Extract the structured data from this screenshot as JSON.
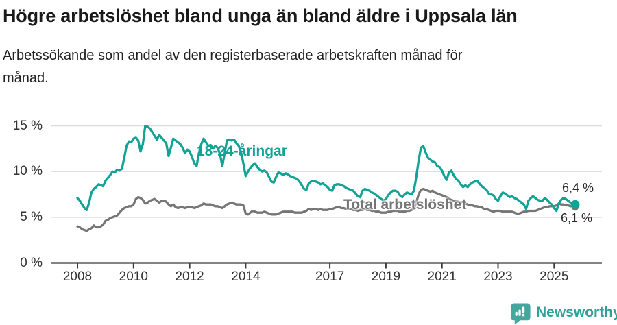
{
  "header": {
    "title": "Högre arbetslöshet bland unga än bland äldre i Uppsala län",
    "subtitle_line1": "Arbetssökande som andel av den registerbaserade arbetskraften månad för",
    "subtitle_line2": "månad."
  },
  "colors": {
    "youth_line": "#12a296",
    "total_line": "#767676",
    "grid": "#dcdcdc",
    "axis": "#3a3a3a",
    "tick_text": "#333333",
    "brand_teal": "#2fa198"
  },
  "footer": {
    "brand": "Newsworthy",
    "logo_icon": "speech-bubble-bar-chart-icon"
  },
  "chart_data": {
    "type": "line",
    "title": "Högre arbetslöshet bland unga än bland äldre i Uppsala län",
    "subtitle": "Arbetssökande som andel av den registerbaserade arbetskraften månad för månad.",
    "x_unit": "month",
    "start_year": 2008,
    "points_per_year": 12,
    "end_point": "2025-10",
    "ylim": [
      0,
      15.5
    ],
    "grid": "horizontal-only",
    "y_axis": {
      "ticks": [
        {
          "value": 15,
          "label": "15 %"
        },
        {
          "value": 10,
          "label": "10 %"
        },
        {
          "value": 5,
          "label": "5 %"
        },
        {
          "value": 0,
          "label": "0 %"
        }
      ]
    },
    "x_axis": {
      "ticks": [
        {
          "value": 2008,
          "label": "2008"
        },
        {
          "value": 2010,
          "label": "2010"
        },
        {
          "value": 2012,
          "label": "2012"
        },
        {
          "value": 2014,
          "label": "2014"
        },
        {
          "value": 2017,
          "label": "2017"
        },
        {
          "value": 2019,
          "label": "2019"
        },
        {
          "value": 2021,
          "label": "2021"
        },
        {
          "value": 2023,
          "label": "2023"
        },
        {
          "value": 2025,
          "label": "2025"
        }
      ]
    },
    "series": [
      {
        "name": "18-24-åringar",
        "color": "#12a296",
        "end_label": "6,4 %",
        "end_value": 6.4,
        "values": [
          7.1,
          6.8,
          6.4,
          6.0,
          5.8,
          6.6,
          7.7,
          8.1,
          8.3,
          8.6,
          8.5,
          8.4,
          9.0,
          9.3,
          9.6,
          10.0,
          9.9,
          10.2,
          10.1,
          10.3,
          11.5,
          12.8,
          13.3,
          13.2,
          13.6,
          13.7,
          13.4,
          12.2,
          13.0,
          15.0,
          14.9,
          14.7,
          14.3,
          13.9,
          13.5,
          14.0,
          13.7,
          13.4,
          13.1,
          11.7,
          12.6,
          13.6,
          13.4,
          13.2,
          13.0,
          12.6,
          12.0,
          12.4,
          12.2,
          11.6,
          10.9,
          10.6,
          12.0,
          13.0,
          13.6,
          13.2,
          12.8,
          12.9,
          12.5,
          12.8,
          12.6,
          11.9,
          10.6,
          12.0,
          13.4,
          13.5,
          13.4,
          13.5,
          13.1,
          12.8,
          12.1,
          10.9,
          9.5,
          10.0,
          10.4,
          10.7,
          10.9,
          10.5,
          10.2,
          10.0,
          10.1,
          9.9,
          9.4,
          8.9,
          8.8,
          9.4,
          9.9,
          9.8,
          9.6,
          9.8,
          9.7,
          9.5,
          9.4,
          9.3,
          9.2,
          8.9,
          8.5,
          8.1,
          8.0,
          8.7,
          8.9,
          9.0,
          8.9,
          8.8,
          8.6,
          8.7,
          8.5,
          8.3,
          8.0,
          7.9,
          8.5,
          8.6,
          8.6,
          8.5,
          8.4,
          8.2,
          8.1,
          8.0,
          7.9,
          7.6,
          7.3,
          7.2,
          7.9,
          8.1,
          8.0,
          7.9,
          7.7,
          7.6,
          7.4,
          7.2,
          7.0,
          6.8,
          7.0,
          7.4,
          7.7,
          7.9,
          7.9,
          7.8,
          7.4,
          7.2,
          7.5,
          7.7,
          7.6,
          7.5,
          7.9,
          9.4,
          11.2,
          12.6,
          12.8,
          12.1,
          11.5,
          11.3,
          11.1,
          11.0,
          10.6,
          10.5,
          10.1,
          9.5,
          9.1,
          9.9,
          10.1,
          9.6,
          9.2,
          9.0,
          8.6,
          8.3,
          8.5,
          8.3,
          8.6,
          8.8,
          8.9,
          9.0,
          8.7,
          8.4,
          8.2,
          8.0,
          7.6,
          7.5,
          7.4,
          7.0,
          6.8,
          7.3,
          7.7,
          7.6,
          7.4,
          7.2,
          7.3,
          7.1,
          7.0,
          6.8,
          6.6,
          6.4,
          5.9,
          6.8,
          7.1,
          7.3,
          7.1,
          6.9,
          6.8,
          6.8,
          7.1,
          6.9,
          6.6,
          6.4,
          6.0,
          5.7,
          6.5,
          6.9,
          7.1,
          7.0,
          6.8,
          6.6,
          6.5,
          6.4
        ]
      },
      {
        "name": "Total arbetslöshet",
        "color": "#767676",
        "end_label": "6,1 %",
        "end_value": 6.1,
        "values": [
          4.0,
          3.9,
          3.7,
          3.6,
          3.5,
          3.7,
          3.8,
          4.1,
          3.9,
          3.9,
          4.0,
          4.2,
          4.6,
          4.7,
          4.9,
          5.0,
          5.1,
          5.2,
          5.5,
          5.8,
          6.0,
          6.1,
          6.2,
          6.2,
          6.4,
          7.0,
          7.2,
          7.1,
          6.9,
          6.5,
          6.6,
          6.8,
          6.9,
          7.0,
          6.8,
          6.6,
          6.8,
          6.8,
          6.7,
          6.4,
          6.2,
          6.4,
          6.1,
          6.0,
          6.1,
          6.1,
          6.0,
          6.1,
          6.1,
          6.1,
          6.0,
          6.1,
          6.2,
          6.3,
          6.5,
          6.4,
          6.4,
          6.4,
          6.3,
          6.2,
          6.2,
          6.1,
          6.0,
          6.2,
          6.4,
          6.5,
          6.6,
          6.5,
          6.4,
          6.4,
          6.4,
          6.3,
          5.4,
          5.3,
          5.5,
          5.7,
          5.6,
          5.5,
          5.5,
          5.5,
          5.6,
          5.5,
          5.4,
          5.3,
          5.3,
          5.3,
          5.4,
          5.5,
          5.6,
          5.6,
          5.6,
          5.6,
          5.6,
          5.5,
          5.5,
          5.5,
          5.5,
          5.6,
          5.7,
          5.9,
          5.8,
          5.9,
          5.9,
          5.8,
          5.9,
          5.8,
          5.8,
          5.8,
          5.9,
          5.9,
          6.0,
          6.1,
          6.1,
          6.0,
          6.0,
          5.9,
          5.9,
          5.9,
          5.8,
          5.8,
          5.7,
          5.8,
          5.8,
          5.9,
          5.8,
          5.8,
          5.7,
          5.7,
          5.6,
          5.6,
          5.5,
          5.5,
          5.5,
          5.6,
          5.6,
          5.7,
          5.7,
          5.7,
          5.6,
          5.6,
          5.6,
          5.7,
          5.7,
          5.8,
          5.9,
          6.6,
          7.5,
          8.0,
          8.1,
          8.0,
          7.9,
          7.8,
          7.9,
          7.7,
          7.6,
          7.5,
          7.4,
          7.3,
          7.2,
          7.0,
          6.9,
          6.8,
          6.8,
          6.7,
          6.6,
          6.7,
          6.5,
          6.4,
          6.3,
          6.3,
          6.2,
          6.2,
          6.1,
          6.1,
          5.9,
          5.9,
          5.8,
          5.7,
          5.6,
          5.7,
          5.7,
          5.7,
          5.6,
          5.6,
          5.6,
          5.6,
          5.6,
          5.5,
          5.4,
          5.4,
          5.5,
          5.6,
          5.6,
          5.7,
          5.7,
          5.7,
          5.7,
          5.8,
          5.9,
          6.0,
          6.1,
          6.1,
          6.2,
          6.2,
          6.2,
          6.3,
          6.5,
          6.4,
          6.4,
          6.3,
          6.3,
          6.2,
          6.2,
          6.1
        ]
      }
    ],
    "legend_position": "inline-labels"
  }
}
